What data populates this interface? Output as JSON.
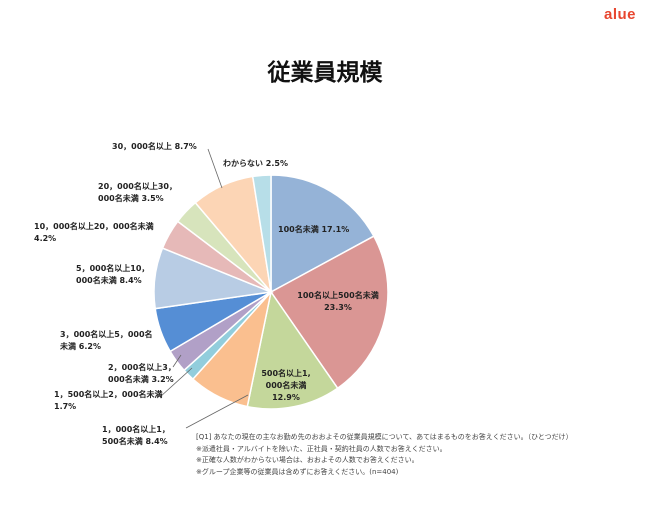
{
  "brand": "alue",
  "chart_data": {
    "type": "pie",
    "title": "従業員規模",
    "start": "top, clockwise",
    "slices": [
      {
        "label": "100名未満",
        "value": 17.1,
        "color": "#95b3d7"
      },
      {
        "label": "100名以上500名未満",
        "value": 23.3,
        "color": "#da9694"
      },
      {
        "label": "500名以上1,000名未満",
        "value": 12.9,
        "color": "#c4d79b"
      },
      {
        "label": "1,000名以上1,500名未満",
        "value": 8.4,
        "color": "#fabf8f"
      },
      {
        "label": "1,500名以上2,000名未満",
        "value": 1.7,
        "color": "#92cddc"
      },
      {
        "label": "2,000名以上3,000名未満",
        "value": 3.2,
        "color": "#b1a0c7"
      },
      {
        "label": "3,000名以上5,000名未満",
        "value": 6.2,
        "color": "#558ed5"
      },
      {
        "label": "5,000名以上10,000名未満",
        "value": 8.4,
        "color": "#b8cce4"
      },
      {
        "label": "10,000名以上20,000名未満",
        "value": 4.2,
        "color": "#e6b9b8"
      },
      {
        "label": "20,000名以上30,000名未満",
        "value": 3.5,
        "color": "#d7e4bc"
      },
      {
        "label": "30,000名以上",
        "value": 8.7,
        "color": "#fcd5b5"
      },
      {
        "label": "わからない",
        "value": 2.5,
        "color": "#b7dee8"
      }
    ],
    "labels": [
      [
        "100名未満 17.1%"
      ],
      [
        "100名以上500名未満",
        "23.3%"
      ],
      [
        "500名以上1,",
        "000名未満",
        "12.9%"
      ],
      [
        "1，000名以上1，",
        "500名未満 8.4%"
      ],
      [
        "1，500名以上2，000名未満",
        "1.7%"
      ],
      [
        "2，000名以上3，",
        "000名未満 3.2%"
      ],
      [
        "3，000名以上5，000名",
        "未満 6.2%"
      ],
      [
        "5，000名以上10，",
        "000名未満 8.4%"
      ],
      [
        "10，000名以上20，000名未満",
        "4.2%"
      ],
      [
        "20，000名以上30，",
        "000名未満 3.5%"
      ],
      [
        "30，000名以上 8.7%"
      ],
      [
        "わからない 2.5%"
      ]
    ]
  },
  "notes": [
    "[Q1] あなたの現在の主なお勤め先のおおよその従業員規模について、あてはまるものをお答えください。（ひとつだけ）",
    "※派遣社員・アルバイトを除いた、正社員・契約社員の人数でお答えください。",
    "※正確な人数がわからない場合は、おおよその人数でお答えください。",
    "※グループ企業等の従業員は含めずにお答えください。(n=404)"
  ]
}
